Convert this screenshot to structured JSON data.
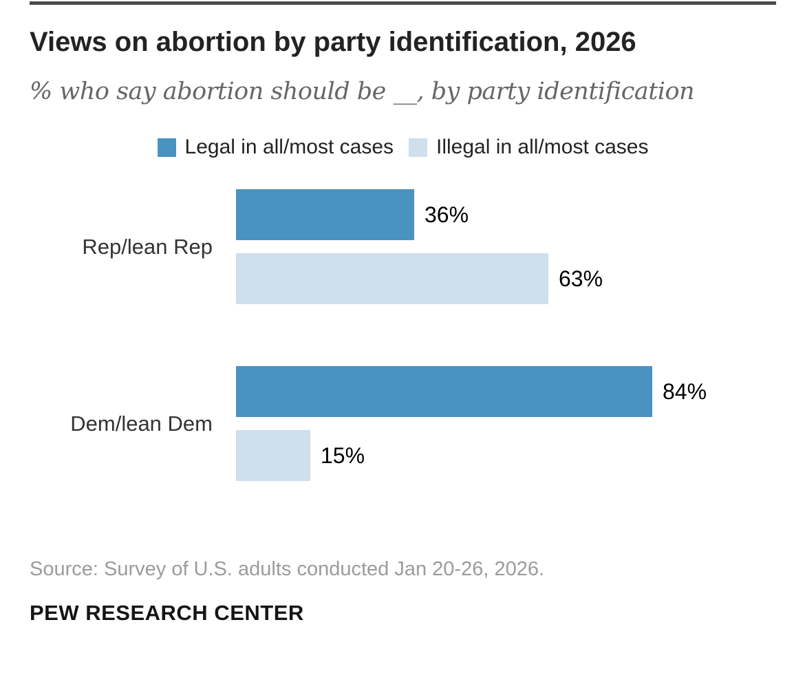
{
  "page": {
    "title": "Views on abortion by party identification, 2026",
    "subtitle": "% who say abortion should be __, by party identification",
    "source": "Source: Survey of U.S. adults conducted Jan 20-26, 2026.",
    "footer_brand": "PEW RESEARCH CENTER"
  },
  "colors": {
    "top_rule": "#4a4a4a",
    "legal_blue": "#4A92BF",
    "illegal_light_blue": "#CFDFEB"
  },
  "chart_data": {
    "type": "bar",
    "orientation": "horizontal",
    "title": "Views on abortion by party identification, 2026",
    "subtitle": "% who say abortion should be __, by party identification",
    "categories": [
      "Rep/lean Rep",
      "Dem/lean Dem"
    ],
    "series": [
      {
        "name": "Legal in all/most cases",
        "color": "#4A92BF",
        "values": [
          36,
          84
        ]
      },
      {
        "name": "Illegal in all/most cases",
        "color": "#CFDFEB",
        "values": [
          63,
          15
        ]
      }
    ],
    "value_suffix": "%",
    "xlim": [
      0,
      100
    ],
    "grid": false,
    "legend_position": "top-center",
    "source": "Source: Survey of U.S. adults conducted Jan 20-26, 2026.",
    "branding": "PEW RESEARCH CENTER"
  }
}
